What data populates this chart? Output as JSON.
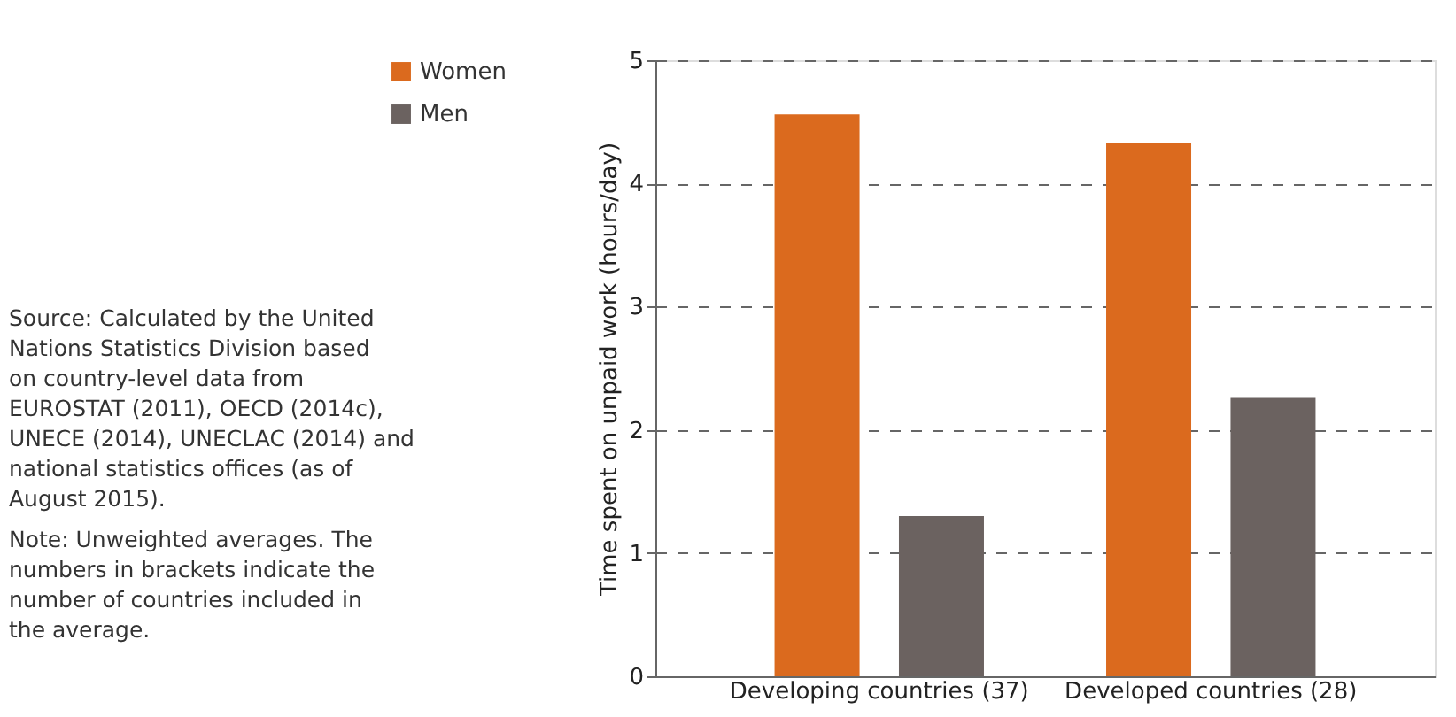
{
  "chart_data": {
    "type": "bar",
    "ylabel": "Time spent on unpaid work (hours/day)",
    "categories": [
      "Developing countries (37)",
      "Developed countries (28)"
    ],
    "series": [
      {
        "name": "Women",
        "color": "#db6a1e",
        "values": [
          4.56,
          4.33
        ]
      },
      {
        "name": "Men",
        "color": "#6b6260",
        "values": [
          1.3,
          2.26
        ]
      }
    ],
    "ylim": [
      0,
      5
    ],
    "yticks": [
      0,
      1,
      2,
      3,
      4,
      5
    ],
    "grid": "y",
    "legend": "top left",
    "annotations": [
      "Source: Calculated by the United Nations Statistics Division based on country-level data from EUROSTAT (2011), OECD (2014c), UNECE (2014), UNECLAC (2014) and national statistics offices (as of August 2015).",
      "Note: Unweighted averages. The numbers in brackets indicate the number of countries included in the average."
    ]
  }
}
